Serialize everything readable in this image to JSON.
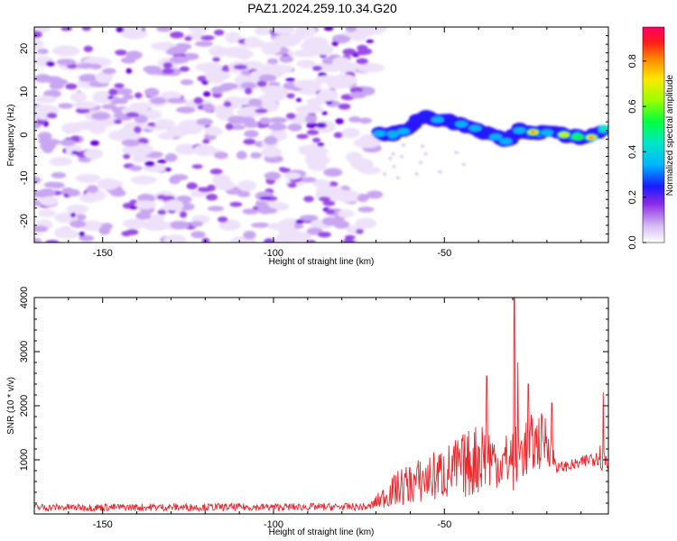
{
  "figure_title": "PAZ1.2024.259.10.34.G20",
  "colors": {
    "snr_line": "#e8282b",
    "axis": "#000000",
    "colormap": [
      "#ffffff",
      "#d4b8f2",
      "#9a4be8",
      "#6a00e6",
      "#1a1aff",
      "#00a0ff",
      "#00e5c8",
      "#00ff40",
      "#9cff00",
      "#ffe600",
      "#ff8a00",
      "#ff1a1a",
      "#ff0066"
    ]
  },
  "chart_data": [
    {
      "type": "heatmap",
      "xlabel": "Height of straight line (km)",
      "ylabel": "Frequency (Hz)",
      "xlim": [
        -170,
        -2
      ],
      "ylim": [
        -25,
        25
      ],
      "xticks": [
        -150,
        -100,
        -50
      ],
      "yticks": [
        -20,
        -10,
        0,
        10,
        20
      ],
      "colorbar": {
        "label": "Normalized spectral amplitude",
        "range": [
          0,
          0.95
        ],
        "ticks": [
          "0.0",
          "0.2",
          "0.4",
          "0.6",
          "0.8"
        ]
      },
      "noise_region_km": [
        -170,
        -70
      ],
      "ridge": [
        {
          "x": -69,
          "y": 0.3,
          "amp": 0.3
        },
        {
          "x": -65,
          "y": 0.2,
          "amp": 0.35
        },
        {
          "x": -62,
          "y": 0.8,
          "amp": 0.28
        },
        {
          "x": -56,
          "y": 4.5,
          "amp": 0.22
        },
        {
          "x": -52,
          "y": 3.5,
          "amp": 0.3
        },
        {
          "x": -48,
          "y": 3.0,
          "amp": 0.2
        },
        {
          "x": -45,
          "y": 2.5,
          "amp": 0.3
        },
        {
          "x": -41,
          "y": 1.5,
          "amp": 0.28
        },
        {
          "x": -38,
          "y": 0.5,
          "amp": 0.25
        },
        {
          "x": -35,
          "y": -0.5,
          "amp": 0.3
        },
        {
          "x": -32,
          "y": -1.5,
          "amp": 0.28
        },
        {
          "x": -28,
          "y": 1.0,
          "amp": 0.3
        },
        {
          "x": -24,
          "y": 0.6,
          "amp": 0.85
        },
        {
          "x": -20,
          "y": 0.5,
          "amp": 0.35
        },
        {
          "x": -15,
          "y": 0.0,
          "amp": 0.65
        },
        {
          "x": -11,
          "y": -0.5,
          "amp": 0.5
        },
        {
          "x": -7,
          "y": -0.6,
          "amp": 0.82
        },
        {
          "x": -3,
          "y": 1.5,
          "amp": 0.4
        }
      ]
    },
    {
      "type": "line",
      "xlabel": "Height of straight line (km)",
      "ylabel": "SNR (10 * v/v)",
      "xlim": [
        -170,
        -2
      ],
      "ylim": [
        0,
        4000
      ],
      "xticks": [
        -150,
        -100,
        -50
      ],
      "yticks": [
        1000,
        2000,
        3000,
        4000
      ],
      "series": [
        {
          "envelope": [
            {
              "x": -170,
              "lo": 50,
              "hi": 190
            },
            {
              "x": -72,
              "lo": 60,
              "hi": 200
            },
            {
              "x": -68,
              "lo": 100,
              "hi": 500
            },
            {
              "x": -63,
              "lo": 150,
              "hi": 850
            },
            {
              "x": -55,
              "lo": 200,
              "hi": 1100
            },
            {
              "x": -48,
              "lo": 250,
              "hi": 1350
            },
            {
              "x": -42,
              "lo": 300,
              "hi": 1600
            },
            {
              "x": -38,
              "lo": 400,
              "hi": 1900
            },
            {
              "x": -34,
              "lo": 500,
              "hi": 1300
            },
            {
              "x": -30,
              "lo": 400,
              "hi": 1700
            },
            {
              "x": -27,
              "lo": 600,
              "hi": 1800
            },
            {
              "x": -20,
              "lo": 900,
              "hi": 1900
            },
            {
              "x": -17,
              "lo": 750,
              "hi": 950
            },
            {
              "x": -10,
              "lo": 820,
              "hi": 1050
            },
            {
              "x": -5,
              "lo": 900,
              "hi": 1300
            },
            {
              "x": -2,
              "lo": 500,
              "hi": 1400
            }
          ],
          "spikes": [
            {
              "x": -37.5,
              "value": 2550
            },
            {
              "x": -29.5,
              "value": 4000
            },
            {
              "x": -28.5,
              "value": 2800
            },
            {
              "x": -25.5,
              "value": 2400
            },
            {
              "x": -18.5,
              "value": 2050
            },
            {
              "x": -3.5,
              "value": 2250
            }
          ]
        }
      ]
    }
  ]
}
